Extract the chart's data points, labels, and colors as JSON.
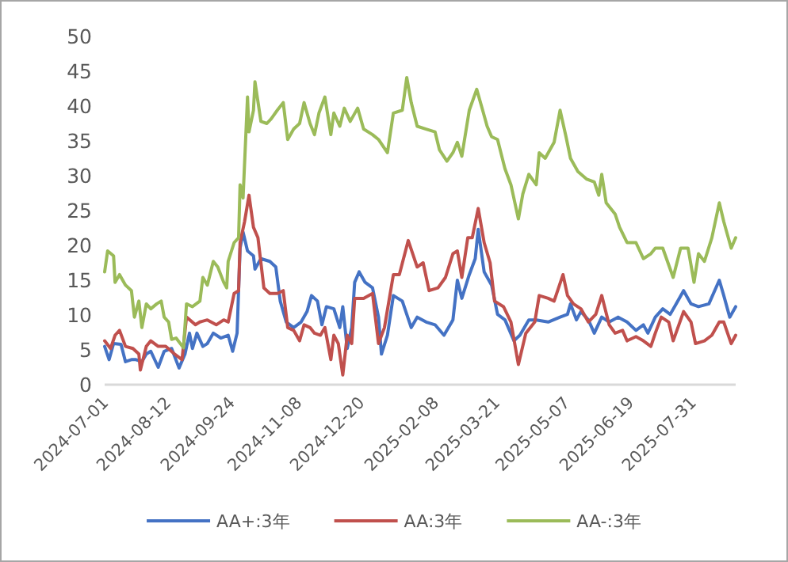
{
  "chart_data": {
    "type": "line",
    "legend": "bottom",
    "grid": false,
    "marker": "none",
    "line_style": "solid",
    "xlim": [
      "2024-07-01",
      "2025-08-29"
    ],
    "xticks": [
      "2024-07-01",
      "2024-08-12",
      "2024-09-24",
      "2024-11-08",
      "2024-12-20",
      "2025-02-08",
      "2025-03-21",
      "2025-05-07",
      "2025-06-19",
      "2025-07-31"
    ],
    "ylim": [
      0,
      50
    ],
    "yticks": [
      0,
      5,
      10,
      15,
      20,
      25,
      30,
      35,
      40,
      45,
      50
    ],
    "series": [
      {
        "name": "AA+:3年",
        "color": "#4472c4",
        "x": [
          "2024-07-01",
          "2024-07-04",
          "2024-07-07",
          "2024-07-12",
          "2024-07-15",
          "2024-07-19",
          "2024-07-22",
          "2024-07-26",
          "2024-07-29",
          "2024-08-01",
          "2024-08-06",
          "2024-08-10",
          "2024-08-15",
          "2024-08-20",
          "2024-08-24",
          "2024-08-27",
          "2024-08-29",
          "2024-09-01",
          "2024-09-05",
          "2024-09-08",
          "2024-09-12",
          "2024-09-17",
          "2024-09-22",
          "2024-09-25",
          "2024-09-28",
          "2024-09-30",
          "2024-10-02",
          "2024-10-05",
          "2024-10-09",
          "2024-10-10",
          "2024-10-14",
          "2024-10-20",
          "2024-10-24",
          "2024-10-27",
          "2024-10-31",
          "2024-11-05",
          "2024-11-10",
          "2024-11-14",
          "2024-11-17",
          "2024-11-21",
          "2024-11-24",
          "2024-11-27",
          "2024-12-02",
          "2024-12-06",
          "2024-12-08",
          "2024-12-11",
          "2024-12-14",
          "2024-12-16",
          "2024-12-19",
          "2024-12-23",
          "2024-12-28",
          "2025-01-01",
          "2025-01-03",
          "2025-01-07",
          "2025-01-11",
          "2025-01-17",
          "2025-01-23",
          "2025-01-27",
          "2025-02-02",
          "2025-02-08",
          "2025-02-14",
          "2025-02-20",
          "2025-02-23",
          "2025-02-26",
          "2025-03-03",
          "2025-03-07",
          "2025-03-09",
          "2025-03-13",
          "2025-03-18",
          "2025-03-22",
          "2025-03-27",
          "2025-04-02",
          "2025-04-06",
          "2025-04-12",
          "2025-04-17",
          "2025-04-25",
          "2025-05-03",
          "2025-05-08",
          "2025-05-10",
          "2025-05-14",
          "2025-05-17",
          "2025-05-22",
          "2025-05-26",
          "2025-05-31",
          "2025-06-05",
          "2025-06-11",
          "2025-06-17",
          "2025-06-23",
          "2025-06-28",
          "2025-07-01",
          "2025-07-06",
          "2025-07-11",
          "2025-07-16",
          "2025-07-20",
          "2025-07-25",
          "2025-07-30",
          "2025-08-04",
          "2025-08-11",
          "2025-08-18",
          "2025-08-21",
          "2025-08-25",
          "2025-08-29"
        ],
        "values": [
          5.5,
          3.6,
          5.9,
          5.8,
          3.3,
          3.6,
          3.6,
          3.3,
          4.4,
          4.8,
          2.5,
          4.8,
          5.2,
          2.4,
          4.4,
          7.4,
          5.2,
          7.4,
          5.5,
          5.9,
          7.4,
          6.7,
          7.1,
          4.8,
          7.4,
          19.6,
          21.9,
          19.2,
          18.5,
          16.6,
          18.1,
          17.7,
          16.9,
          12,
          9,
          8.2,
          9,
          10.5,
          12.8,
          12,
          8.6,
          11.2,
          10.9,
          8.2,
          11.2,
          5.2,
          8.2,
          14.7,
          16.2,
          14.7,
          13.9,
          9.7,
          4.4,
          7.1,
          12.8,
          12,
          8.2,
          9.7,
          9,
          8.6,
          7.1,
          9.3,
          15,
          12.4,
          15.8,
          18.1,
          22.3,
          16.2,
          14.3,
          10.1,
          9.3,
          6.3,
          7.1,
          9.3,
          9.3,
          9,
          9.7,
          10.1,
          11.6,
          9.3,
          10.5,
          9.3,
          7.4,
          9.7,
          9,
          9.7,
          9,
          7.8,
          8.6,
          7.4,
          9.7,
          10.9,
          10.1,
          11.6,
          13.5,
          11.6,
          11.2,
          11.6,
          15,
          12.8,
          9.7,
          11.2
        ]
      },
      {
        "name": "AA:3年",
        "color": "#c0504d",
        "x": [
          "2024-07-01",
          "2024-07-05",
          "2024-07-08",
          "2024-07-11",
          "2024-07-15",
          "2024-07-20",
          "2024-07-24",
          "2024-07-25",
          "2024-07-29",
          "2024-08-01",
          "2024-08-06",
          "2024-08-11",
          "2024-08-17",
          "2024-08-22",
          "2024-08-25",
          "2024-08-31",
          "2024-09-03",
          "2024-09-08",
          "2024-09-14",
          "2024-09-19",
          "2024-09-22",
          "2024-09-26",
          "2024-09-29",
          "2024-09-30",
          "2024-10-03",
          "2024-10-06",
          "2024-10-09",
          "2024-10-12",
          "2024-10-16",
          "2024-10-20",
          "2024-10-25",
          "2024-10-29",
          "2024-11-01",
          "2024-11-05",
          "2024-11-09",
          "2024-11-12",
          "2024-11-16",
          "2024-11-19",
          "2024-11-23",
          "2024-11-26",
          "2024-11-30",
          "2024-12-02",
          "2024-12-05",
          "2024-12-08",
          "2024-12-11",
          "2024-12-14",
          "2024-12-16",
          "2024-12-22",
          "2024-12-28",
          "2025-01-01",
          "2025-01-05",
          "2025-01-11",
          "2025-01-15",
          "2025-01-21",
          "2025-01-27",
          "2025-01-31",
          "2025-02-04",
          "2025-02-10",
          "2025-02-15",
          "2025-02-20",
          "2025-02-23",
          "2025-02-26",
          "2025-03-02",
          "2025-03-05",
          "2025-03-09",
          "2025-03-13",
          "2025-03-17",
          "2025-03-20",
          "2025-03-26",
          "2025-03-31",
          "2025-04-05",
          "2025-04-10",
          "2025-04-16",
          "2025-04-19",
          "2025-04-25",
          "2025-04-29",
          "2025-05-05",
          "2025-05-08",
          "2025-05-12",
          "2025-05-17",
          "2025-05-22",
          "2025-05-27",
          "2025-05-31",
          "2025-06-05",
          "2025-06-09",
          "2025-06-14",
          "2025-06-17",
          "2025-06-23",
          "2025-06-28",
          "2025-07-03",
          "2025-07-06",
          "2025-07-10",
          "2025-07-15",
          "2025-07-18",
          "2025-07-25",
          "2025-07-30",
          "2025-08-02",
          "2025-08-08",
          "2025-08-13",
          "2025-08-18",
          "2025-08-21",
          "2025-08-26",
          "2025-08-29"
        ],
        "values": [
          6.3,
          5.2,
          7.1,
          7.8,
          5.5,
          5.2,
          4.4,
          2.1,
          5.5,
          6.3,
          5.5,
          5.5,
          4.4,
          3.6,
          9.7,
          8.6,
          9,
          9.3,
          8.6,
          9.3,
          9,
          13.1,
          13.5,
          20.4,
          23.4,
          27.2,
          22.6,
          21.1,
          13.9,
          13.1,
          13.1,
          13.5,
          8.2,
          7.8,
          6.3,
          8.6,
          8.2,
          7.4,
          7.1,
          8.2,
          3.6,
          7.1,
          5.9,
          1.4,
          7.1,
          5.9,
          12.4,
          12.4,
          13.1,
          5.9,
          8.2,
          15.8,
          15.8,
          20.7,
          16.9,
          17.5,
          13.5,
          13.9,
          15.4,
          18.8,
          19.2,
          15.4,
          21.1,
          21.1,
          25.3,
          20.4,
          17.5,
          12,
          11.2,
          9,
          2.9,
          7.4,
          9,
          12.8,
          12.4,
          12,
          15.8,
          12.8,
          11.6,
          10.9,
          9,
          10.1,
          12.8,
          8.6,
          7.4,
          7.8,
          6.3,
          6.9,
          6.3,
          5.5,
          7.4,
          9.7,
          9,
          6.3,
          10.5,
          9,
          5.9,
          6.3,
          7.1,
          9,
          9,
          5.9,
          7.1
        ]
      },
      {
        "name": "AA-:3年",
        "color": "#9bbb59",
        "x": [
          "2024-07-01",
          "2024-07-03",
          "2024-07-07",
          "2024-07-08",
          "2024-07-11",
          "2024-07-15",
          "2024-07-19",
          "2024-07-21",
          "2024-07-24",
          "2024-07-26",
          "2024-07-29",
          "2024-08-01",
          "2024-08-05",
          "2024-08-08",
          "2024-08-10",
          "2024-08-13",
          "2024-08-15",
          "2024-08-18",
          "2024-08-23",
          "2024-08-25",
          "2024-08-29",
          "2024-09-03",
          "2024-09-05",
          "2024-09-08",
          "2024-09-12",
          "2024-09-15",
          "2024-09-19",
          "2024-09-21",
          "2024-09-22",
          "2024-09-26",
          "2024-09-29",
          "2024-09-30",
          "2024-10-02",
          "2024-10-05",
          "2024-10-06",
          "2024-10-09",
          "2024-10-10",
          "2024-10-14",
          "2024-10-18",
          "2024-10-21",
          "2024-10-25",
          "2024-10-29",
          "2024-11-01",
          "2024-11-05",
          "2024-11-09",
          "2024-11-12",
          "2024-11-16",
          "2024-11-19",
          "2024-11-22",
          "2024-11-26",
          "2024-11-30",
          "2024-12-02",
          "2024-12-06",
          "2024-12-09",
          "2024-12-13",
          "2024-12-18",
          "2024-12-22",
          "2024-12-28",
          "2025-01-01",
          "2025-01-07",
          "2025-01-11",
          "2025-01-17",
          "2025-01-20",
          "2025-01-23",
          "2025-01-27",
          "2025-02-02",
          "2025-02-08",
          "2025-02-11",
          "2025-02-16",
          "2025-02-20",
          "2025-02-23",
          "2025-02-26",
          "2025-03-03",
          "2025-03-08",
          "2025-03-12",
          "2025-03-15",
          "2025-03-18",
          "2025-03-22",
          "2025-03-27",
          "2025-03-31",
          "2025-04-05",
          "2025-04-08",
          "2025-04-12",
          "2025-04-17",
          "2025-04-19",
          "2025-04-23",
          "2025-04-29",
          "2025-05-03",
          "2025-05-07",
          "2025-05-10",
          "2025-05-15",
          "2025-05-21",
          "2025-05-26",
          "2025-05-29",
          "2025-05-31",
          "2025-06-03",
          "2025-06-09",
          "2025-06-12",
          "2025-06-17",
          "2025-06-23",
          "2025-06-28",
          "2025-07-03",
          "2025-07-06",
          "2025-07-11",
          "2025-07-18",
          "2025-07-23",
          "2025-07-28",
          "2025-08-01",
          "2025-08-04",
          "2025-08-08",
          "2025-08-13",
          "2025-08-18",
          "2025-08-21",
          "2025-08-26",
          "2025-08-29"
        ],
        "values": [
          16.2,
          19.2,
          18.5,
          14.7,
          15.8,
          14.3,
          13.5,
          9.7,
          12,
          8.2,
          11.6,
          10.9,
          11.6,
          12,
          9.7,
          9,
          6.5,
          6.7,
          5.3,
          11.6,
          11.2,
          12,
          15.4,
          14.3,
          17.7,
          16.9,
          14.7,
          13.9,
          17.7,
          20.4,
          21.1,
          28.7,
          26.8,
          41.3,
          36.3,
          39.4,
          43.5,
          37.8,
          37.5,
          38.2,
          39.4,
          40.5,
          35.2,
          36.7,
          37.5,
          40.5,
          37.5,
          35.9,
          39,
          41.3,
          35.9,
          39,
          37.1,
          39.7,
          37.8,
          39.7,
          36.7,
          35.9,
          35.2,
          33.3,
          39,
          39.4,
          44.1,
          40.5,
          37.1,
          36.7,
          36.3,
          33.7,
          32.1,
          33.3,
          34.8,
          32.8,
          39.4,
          42.4,
          39.4,
          37.1,
          35.6,
          35.2,
          31,
          28.7,
          23.8,
          27.4,
          30.2,
          28.7,
          33.3,
          32.5,
          34.8,
          39.4,
          35.6,
          32.5,
          30.6,
          29.5,
          29.1,
          27.2,
          30.2,
          26.1,
          24.5,
          22.6,
          20.4,
          20.4,
          18.1,
          18.8,
          19.6,
          19.6,
          15.4,
          19.6,
          19.6,
          14.7,
          18.8,
          17.7,
          21.1,
          26.1,
          23.4,
          19.6,
          21.1
        ]
      }
    ]
  }
}
